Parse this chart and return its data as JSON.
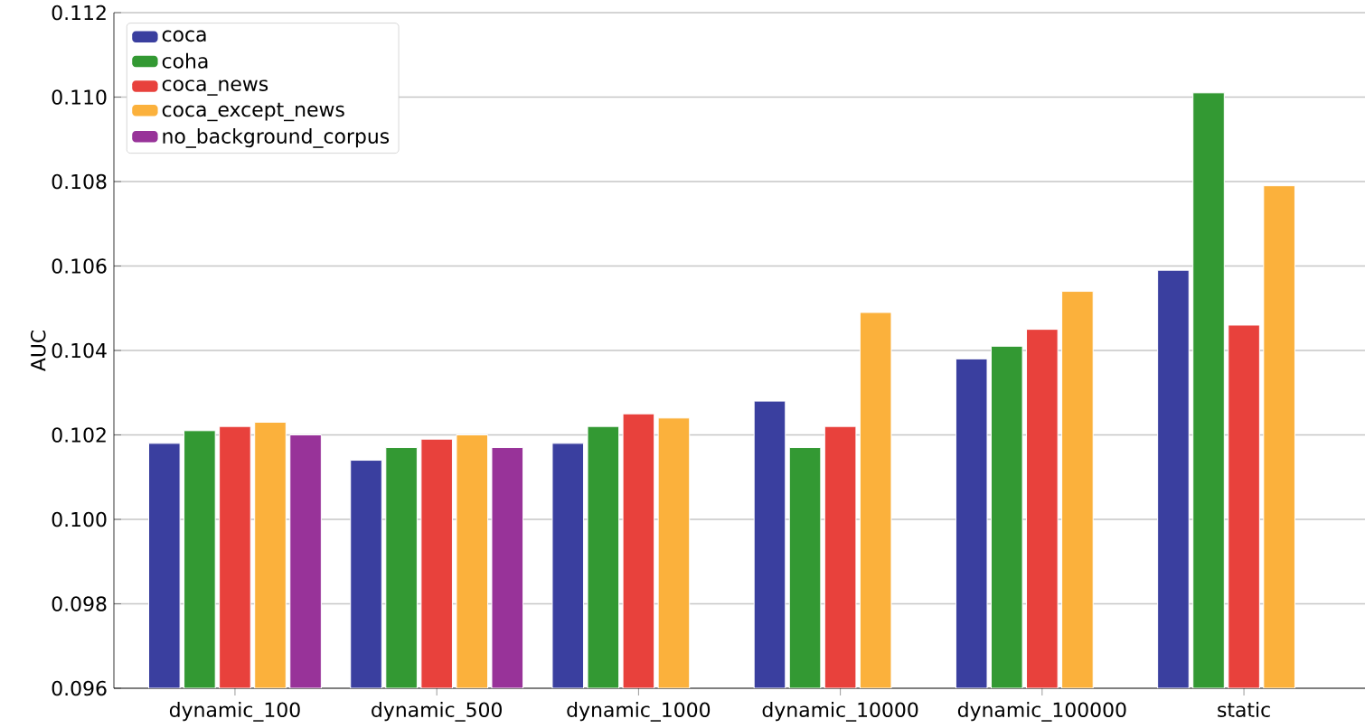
{
  "chart_data": {
    "type": "bar",
    "ylabel": "AUC",
    "categories": [
      "dynamic_100",
      "dynamic_500",
      "dynamic_1000",
      "dynamic_10000",
      "dynamic_100000",
      "static"
    ],
    "series": [
      {
        "name": "coca",
        "color": "#3a3f9f",
        "values": [
          0.1018,
          0.1014,
          0.1018,
          0.1028,
          0.1038,
          0.1059
        ]
      },
      {
        "name": "coha",
        "color": "#339933",
        "values": [
          0.1021,
          0.1017,
          0.1022,
          0.1017,
          0.1041,
          0.1101
        ]
      },
      {
        "name": "coca_news",
        "color": "#e8413c",
        "values": [
          0.1022,
          0.1019,
          0.1025,
          0.1022,
          0.1045,
          0.1046
        ]
      },
      {
        "name": "coca_except_news",
        "color": "#fbb13c",
        "values": [
          0.1023,
          0.102,
          0.1024,
          0.1049,
          0.1054,
          0.1079
        ]
      },
      {
        "name": "no_background_corpus",
        "color": "#983399",
        "values": [
          0.102,
          0.1017,
          null,
          null,
          null,
          null
        ]
      }
    ],
    "ylim": [
      0.096,
      0.112
    ],
    "yticks": [
      {
        "value": 0.096,
        "label": "0.096"
      },
      {
        "value": 0.098,
        "label": "0.098"
      },
      {
        "value": 0.1,
        "label": "0.100"
      },
      {
        "value": 0.102,
        "label": "0.102"
      },
      {
        "value": 0.104,
        "label": "0.104"
      },
      {
        "value": 0.106,
        "label": "0.106"
      },
      {
        "value": 0.108,
        "label": "0.108"
      },
      {
        "value": 0.11,
        "label": "0.110"
      },
      {
        "value": 0.112,
        "label": "0.112"
      }
    ],
    "grid": "y",
    "legend": "top left"
  }
}
